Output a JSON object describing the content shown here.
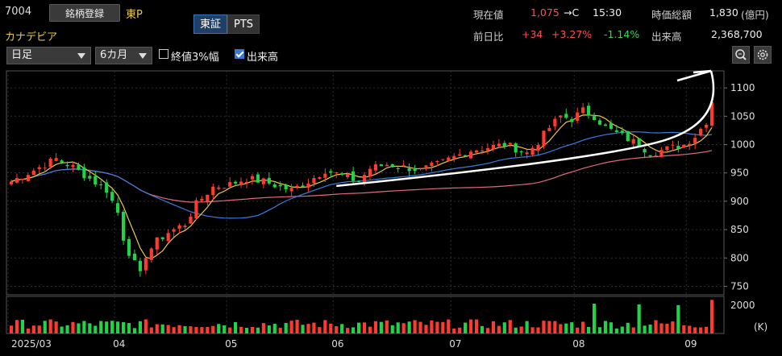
{
  "header": {
    "code": "7004",
    "register_button": "銘柄登録",
    "market": "東P",
    "name": "カナデビア",
    "tabs": [
      {
        "label": "東証",
        "active": true
      },
      {
        "label": "PTS",
        "active": false
      }
    ]
  },
  "quote": {
    "current_label": "現在値",
    "current_value": "1,075",
    "current_suffix": "→C",
    "time": "15:30",
    "mcap_label": "時価総額",
    "mcap_value": "1,830",
    "mcap_unit": "(億円)",
    "change_label": "前日比",
    "change_abs": "+34",
    "change_pct": "+3.27%",
    "other_pct": "-1.14%",
    "volume_label": "出来高",
    "volume_value": "2,368,700"
  },
  "controls": {
    "period_select": "日足",
    "range_select": "6カ月",
    "limit_check_label": "終値3%幅",
    "limit_check_checked": false,
    "volume_check_label": "出来高",
    "volume_check_checked": true
  },
  "icons": {
    "zoom": "zoom-icon",
    "settings": "gear-icon"
  },
  "colors": {
    "up": "#ff3b30",
    "down": "#22d34a",
    "ma_short": "#e8c84a",
    "ma_mid": "#3b7de0",
    "ma_long": "#e06a7a",
    "accent": "#3d74b8",
    "price_up_text": "#ff4d4d"
  },
  "chart_data": {
    "type": "candlestick",
    "y_ticks": [
      750,
      800,
      850,
      900,
      950,
      1000,
      1050,
      1100
    ],
    "ylim": [
      735,
      1130
    ],
    "volume_ticks": [
      "2000"
    ],
    "volume_unit": "(K)",
    "volume_max": 2500,
    "x_labels": [
      {
        "label": "2025/03",
        "index": 0
      },
      {
        "label": "04",
        "index": 19
      },
      {
        "label": "05",
        "index": 39
      },
      {
        "label": "06",
        "index": 58
      },
      {
        "label": "07",
        "index": 79
      },
      {
        "label": "08",
        "index": 101
      },
      {
        "label": "09",
        "index": 121
      }
    ],
    "anchors": [
      [
        0,
        935
      ],
      [
        4,
        955
      ],
      [
        8,
        975
      ],
      [
        11,
        960
      ],
      [
        14,
        940
      ],
      [
        17,
        920
      ],
      [
        19,
        880
      ],
      [
        20,
        835
      ],
      [
        21,
        810
      ],
      [
        23,
        770
      ],
      [
        24,
        805
      ],
      [
        26,
        830
      ],
      [
        28,
        845
      ],
      [
        31,
        860
      ],
      [
        33,
        895
      ],
      [
        36,
        925
      ],
      [
        39,
        930
      ],
      [
        42,
        940
      ],
      [
        45,
        935
      ],
      [
        48,
        925
      ],
      [
        50,
        920
      ],
      [
        53,
        935
      ],
      [
        56,
        955
      ],
      [
        59,
        945
      ],
      [
        62,
        935
      ],
      [
        64,
        958
      ],
      [
        67,
        965
      ],
      [
        70,
        960
      ],
      [
        73,
        955
      ],
      [
        76,
        965
      ],
      [
        79,
        978
      ],
      [
        82,
        990
      ],
      [
        85,
        995
      ],
      [
        88,
        1000
      ],
      [
        90,
        993
      ],
      [
        92,
        985
      ],
      [
        94,
        1005
      ],
      [
        96,
        1030
      ],
      [
        98,
        1050
      ],
      [
        100,
        1045
      ],
      [
        102,
        1060
      ],
      [
        104,
        1050
      ],
      [
        106,
        1030
      ],
      [
        108,
        1020
      ],
      [
        110,
        1010
      ],
      [
        112,
        1000
      ],
      [
        114,
        985
      ],
      [
        116,
        990
      ],
      [
        118,
        995
      ],
      [
        120,
        1000
      ],
      [
        122,
        1015
      ],
      [
        124,
        1041
      ],
      [
        125,
        1075
      ]
    ],
    "ma_short_period": 5,
    "ma_mid_period": 25,
    "ma_long_period": 75,
    "volume_highlight": [
      [
        104,
        2100
      ],
      [
        112,
        2050
      ],
      [
        119,
        2000
      ],
      [
        125,
        2368
      ]
    ]
  }
}
